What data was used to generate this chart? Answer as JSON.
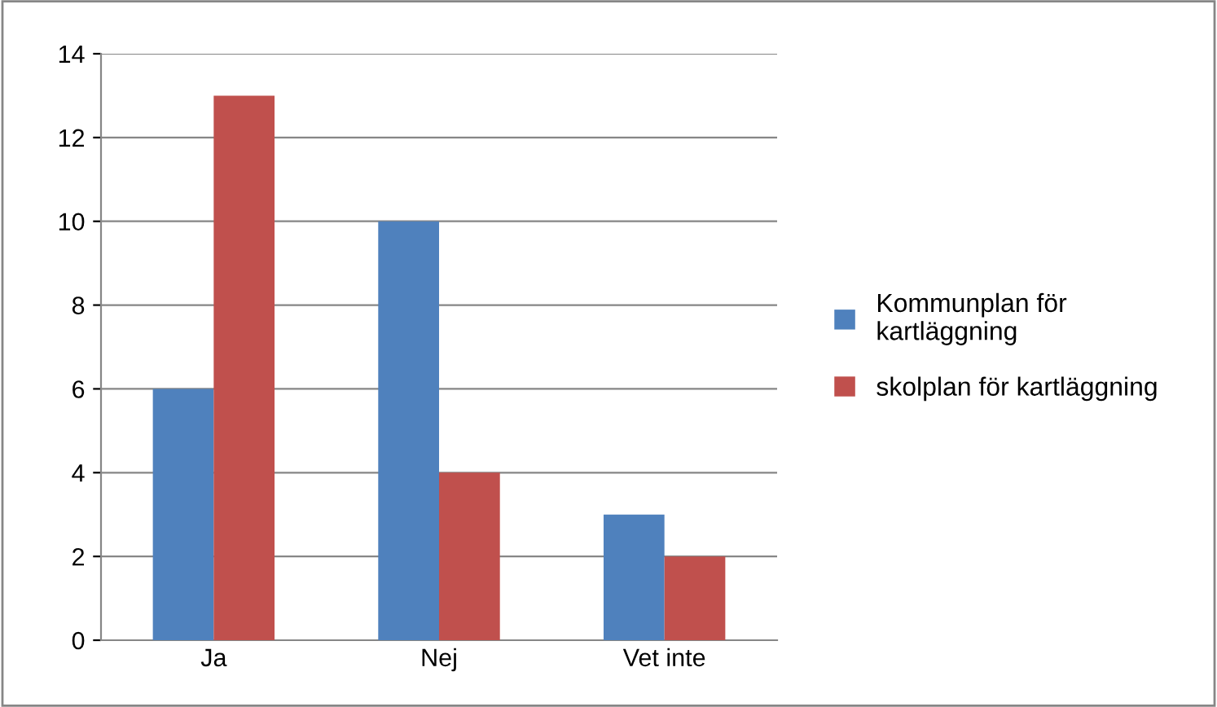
{
  "chart_data": {
    "type": "bar",
    "categories": [
      "Ja",
      "Nej",
      "Vet inte"
    ],
    "series": [
      {
        "name": "Kommunplan för\nkartläggning",
        "color": "#4f81bd",
        "values": [
          6,
          10,
          3
        ]
      },
      {
        "name": "skolplan för kartläggning",
        "color": "#c0504d",
        "values": [
          13,
          4,
          2
        ]
      }
    ],
    "ylim": [
      0,
      14
    ],
    "yticks": [
      0,
      2,
      4,
      6,
      8,
      10,
      12,
      14
    ],
    "grid": "y",
    "legend": "right"
  }
}
